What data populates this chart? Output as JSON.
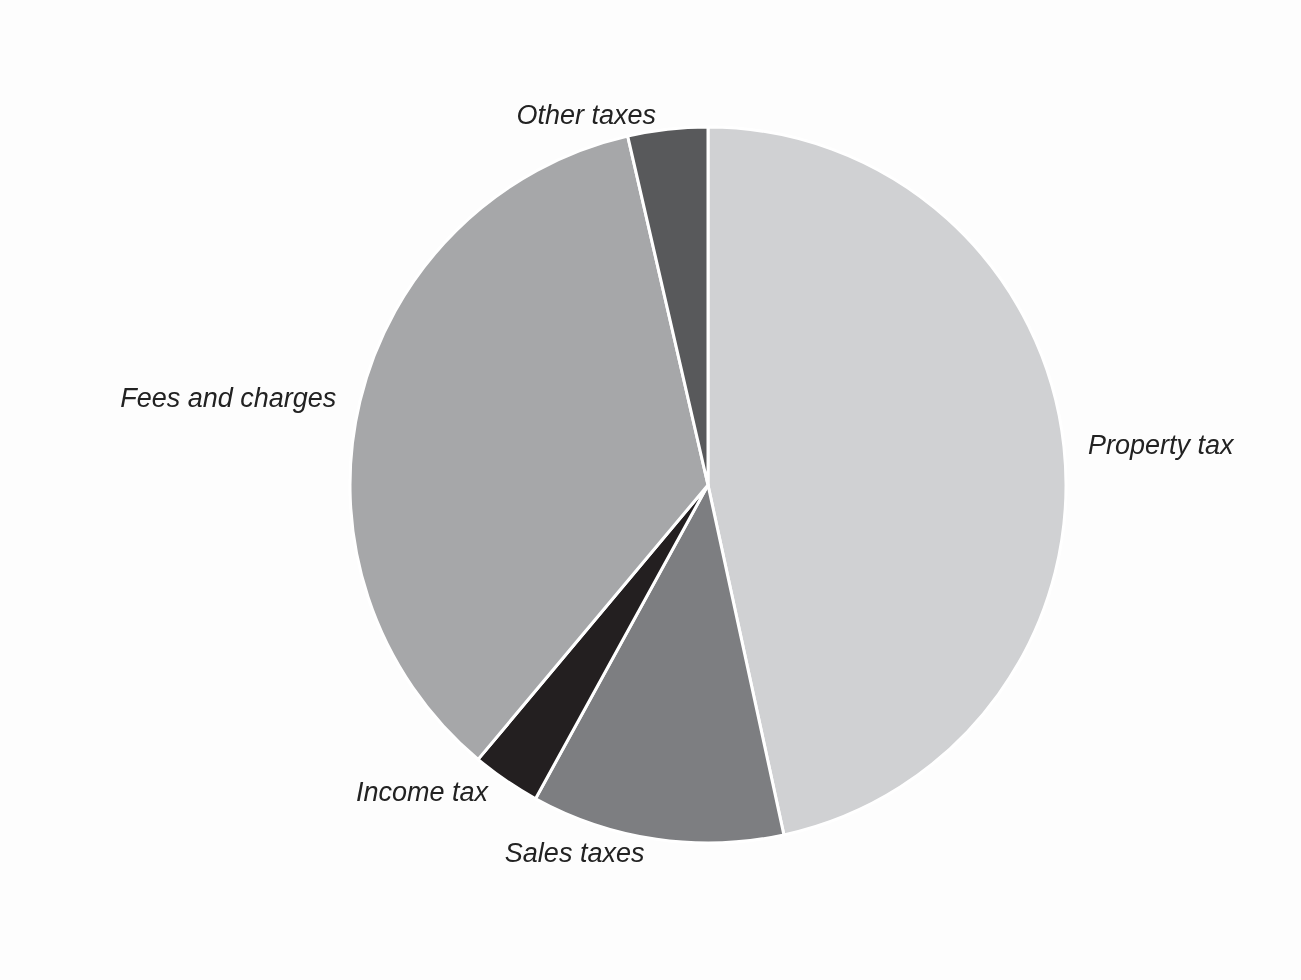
{
  "chart_data": {
    "type": "pie",
    "categories": [
      "Property tax",
      "Sales taxes",
      "Income tax",
      "Fees and charges",
      "Other taxes"
    ],
    "values": [
      46.6,
      11.4,
      3.1,
      35.3,
      3.6
    ],
    "colors": [
      "#d0d1d3",
      "#7d7e81",
      "#231f20",
      "#a6a7a9",
      "#58595b"
    ],
    "legend": false
  }
}
